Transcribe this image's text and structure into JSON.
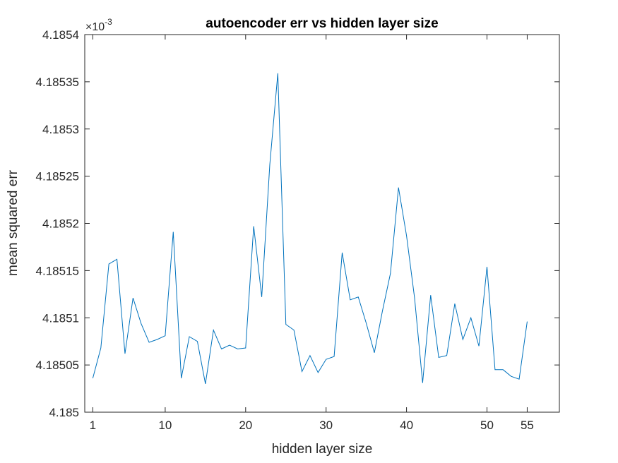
{
  "chart_data": {
    "type": "line",
    "title": "autoencoder err vs hidden layer size",
    "xlabel": "hidden layer size",
    "ylabel": "mean squared err",
    "exponent_multiplier": "×10",
    "exponent_power": "-3",
    "xlim": [
      0,
      59
    ],
    "ylim": [
      4.185,
      4.1854
    ],
    "x_ticks": [
      1,
      10,
      20,
      30,
      40,
      50,
      55
    ],
    "x_tick_labels": [
      "1",
      "10",
      "20",
      "30",
      "40",
      "50",
      "55"
    ],
    "y_ticks": [
      4.185,
      4.18505,
      4.1851,
      4.18515,
      4.1852,
      4.18525,
      4.1853,
      4.18535,
      4.1854
    ],
    "y_tick_labels": [
      "4.185",
      "4.18505",
      "4.1851",
      "4.18515",
      "4.1852",
      "4.18525",
      "4.1853",
      "4.18535",
      "4.1854"
    ],
    "grid": false,
    "line_color": "#0072BD",
    "series": [
      {
        "x": [
          1,
          2,
          3,
          4,
          5,
          6,
          7,
          8,
          9,
          10,
          11,
          12,
          13,
          14,
          15,
          16,
          17,
          18,
          19,
          20,
          21,
          22,
          23,
          24,
          25,
          26,
          27,
          28,
          29,
          30,
          31,
          32,
          33,
          34,
          35,
          36,
          37,
          38,
          39,
          40,
          41,
          42,
          43,
          44,
          45,
          46,
          47,
          48,
          49,
          50,
          51,
          52,
          53,
          54,
          55
        ],
        "values": [
          4.185036,
          4.185068,
          4.185157,
          4.185162,
          4.185062,
          4.185121,
          4.185094,
          4.185074,
          4.185077,
          4.185081,
          4.185191,
          4.185036,
          4.18508,
          4.185075,
          4.18503,
          4.185087,
          4.185067,
          4.185071,
          4.185067,
          4.185068,
          4.185197,
          4.185122,
          4.185262,
          4.185359,
          4.185093,
          4.185087,
          4.185043,
          4.18506,
          4.185042,
          4.185056,
          4.185059,
          4.185169,
          4.185119,
          4.185122,
          4.185094,
          4.185063,
          4.185107,
          4.185147,
          4.185238,
          4.185187,
          4.185121,
          4.185031,
          4.185124,
          4.185058,
          4.18506,
          4.185115,
          4.185077,
          4.1851,
          4.18507,
          4.185154,
          4.185045,
          4.185045,
          4.185038,
          4.185035,
          4.185096
        ]
      }
    ]
  }
}
